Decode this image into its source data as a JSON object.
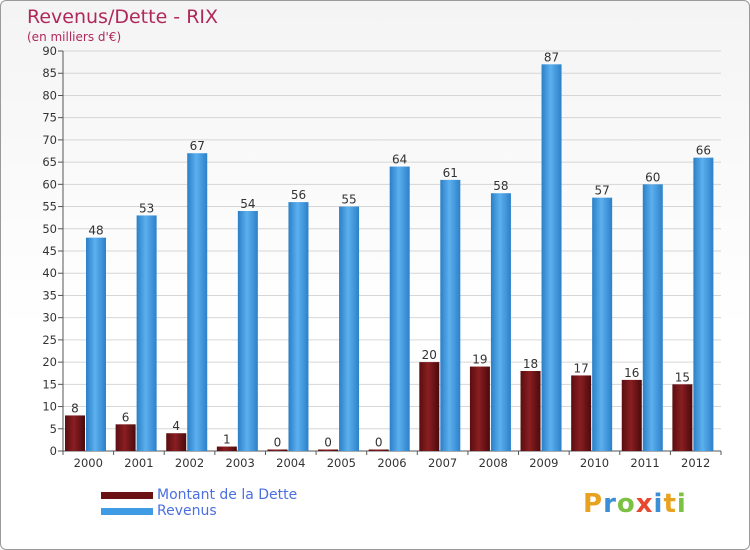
{
  "title": "Revenus/Dette - RIX",
  "subtitle": "(en milliers d'€)",
  "brand": {
    "letters": [
      "P",
      "r",
      "o",
      "x",
      "i",
      "t",
      "i"
    ],
    "colors": [
      "#e8a21f",
      "#3a8fd6",
      "#7cc242",
      "#e8482d",
      "#3a8fd6",
      "#e8a21f",
      "#7cc242"
    ]
  },
  "chart_data": {
    "type": "bar",
    "categories": [
      "2000",
      "2001",
      "2002",
      "2003",
      "2004",
      "2005",
      "2006",
      "2007",
      "2008",
      "2009",
      "2010",
      "2011",
      "2012"
    ],
    "series": [
      {
        "name": "Montant de la Dette",
        "values": [
          8,
          6,
          4,
          1,
          0,
          0,
          0,
          20,
          19,
          18,
          17,
          16,
          15
        ],
        "color": "#7a1518"
      },
      {
        "name": "Revenus",
        "values": [
          48,
          53,
          67,
          54,
          56,
          55,
          64,
          61,
          58,
          87,
          57,
          60,
          66
        ],
        "color": "#3f9be3"
      }
    ],
    "ylim": [
      0,
      90
    ],
    "yticks": [
      0,
      5,
      10,
      15,
      20,
      25,
      30,
      35,
      40,
      45,
      50,
      55,
      60,
      65,
      70,
      75,
      80,
      85,
      90
    ],
    "grid": true,
    "legend_position": "bottom-left"
  }
}
